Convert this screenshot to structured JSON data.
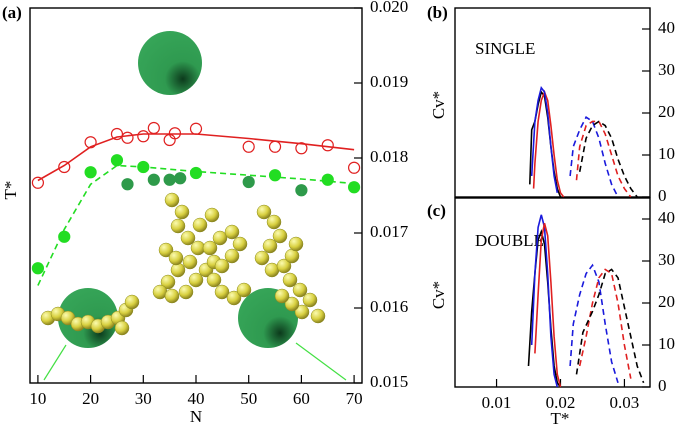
{
  "chart_data": [
    {
      "type": "scatter",
      "label": "(a)",
      "xlabel": "N",
      "ylabel": "T*",
      "xlim": [
        8.5,
        71.5
      ],
      "xticks": [
        10,
        20,
        30,
        40,
        50,
        60,
        70
      ],
      "ylim": [
        0.015,
        0.02
      ],
      "yticks": [
        0.015,
        0.016,
        0.017,
        0.018,
        0.019,
        {
          "value": 0.02,
          "label": "0.020"
        }
      ],
      "series": [
        {
          "color": "#e02020",
          "marker": "open",
          "x": [
            10,
            15,
            20,
            25,
            27,
            30,
            32,
            35,
            36,
            40,
            50,
            55,
            60,
            65,
            70
          ],
          "values": [
            0.01767,
            0.01788,
            0.01821,
            0.01832,
            0.01827,
            0.01829,
            0.0184,
            0.01824,
            0.01833,
            0.01839,
            0.01815,
            0.01815,
            0.01813,
            0.01817,
            0.01787
          ]
        },
        {
          "color": "#e02020",
          "marker": "none",
          "dash": false,
          "x": [
            10,
            15,
            20,
            25,
            30,
            40,
            50,
            60,
            70
          ],
          "values": [
            0.0177,
            0.0179,
            0.01815,
            0.01828,
            0.01832,
            0.01832,
            0.01826,
            0.01819,
            0.01811
          ]
        },
        {
          "color": "#22dd22",
          "marker": "filled",
          "x": [
            10,
            15,
            20,
            25,
            30,
            40,
            55,
            65,
            70
          ],
          "values": [
            0.01653,
            0.01695,
            0.01781,
            0.01797,
            0.01788,
            0.0178,
            0.01777,
            0.01771,
            0.01761
          ]
        },
        {
          "color": "#2e9a4a",
          "marker": "filled",
          "x": [
            27,
            32,
            35,
            37,
            50,
            60
          ],
          "values": [
            0.01765,
            0.01771,
            0.01771,
            0.01773,
            0.01768,
            0.01757
          ]
        },
        {
          "color": "#22dd22",
          "marker": "none",
          "dash": true,
          "x": [
            10,
            15,
            20,
            25,
            30,
            40,
            50,
            60,
            70
          ],
          "values": [
            0.0163,
            0.01705,
            0.01765,
            0.0179,
            0.01788,
            0.01782,
            0.01777,
            0.01772,
            0.01766
          ]
        }
      ]
    },
    {
      "type": "line",
      "label": "(b)",
      "ylabel": "Cv*",
      "annotation": "SINGLE",
      "xlim": [
        0.0035,
        0.034
      ],
      "ylim": [
        0,
        45
      ],
      "yticks": [
        0,
        10,
        20,
        30,
        40
      ],
      "series": [
        {
          "color": "#000000",
          "dash": false,
          "x": [
            0.0152,
            0.0155,
            0.016,
            0.0165,
            0.017,
            0.0175,
            0.018,
            0.0185,
            0.019,
            0.0195,
            0.02
          ],
          "values": [
            3,
            16,
            18,
            22,
            25,
            24,
            19,
            12,
            6,
            2,
            0
          ]
        },
        {
          "color": "#e02020",
          "dash": false,
          "x": [
            0.0158,
            0.016,
            0.0165,
            0.017,
            0.0175,
            0.018,
            0.0185,
            0.019,
            0.0195,
            0.02,
            0.0205
          ],
          "values": [
            2,
            8,
            18,
            23,
            25,
            23,
            17,
            10,
            4,
            1,
            0
          ]
        },
        {
          "color": "#1a1adc",
          "dash": false,
          "x": [
            0.0155,
            0.016,
            0.0165,
            0.017,
            0.0175,
            0.018,
            0.0185,
            0.019,
            0.0195
          ],
          "values": [
            5,
            18,
            23,
            26,
            25,
            20,
            12,
            5,
            1
          ]
        },
        {
          "color": "#1a1adc",
          "dash": true,
          "x": [
            0.0215,
            0.022,
            0.023,
            0.024,
            0.025,
            0.026,
            0.027,
            0.028,
            0.029
          ],
          "values": [
            5,
            12,
            16,
            19,
            18,
            14,
            8,
            3,
            0
          ]
        },
        {
          "color": "#e02020",
          "dash": true,
          "x": [
            0.0225,
            0.023,
            0.024,
            0.025,
            0.026,
            0.027,
            0.028,
            0.029,
            0.03,
            0.031
          ],
          "values": [
            4,
            12,
            17,
            18,
            18,
            15,
            10,
            5,
            2,
            0
          ]
        },
        {
          "color": "#000000",
          "dash": true,
          "x": [
            0.023,
            0.024,
            0.025,
            0.026,
            0.027,
            0.028,
            0.029,
            0.03,
            0.031,
            0.032
          ],
          "values": [
            6,
            14,
            17,
            18,
            17,
            14,
            9,
            5,
            2,
            0
          ]
        }
      ]
    },
    {
      "type": "line",
      "label": "(c)",
      "xlabel": "T*",
      "ylabel": "Cv*",
      "annotation": "DOUBLE",
      "xlim": [
        0.0035,
        0.034
      ],
      "xticks": [
        0.01,
        0.02,
        0.03
      ],
      "ylim": [
        0,
        45
      ],
      "yticks": [
        0,
        10,
        20,
        30,
        40
      ],
      "series": [
        {
          "color": "#000000",
          "dash": false,
          "x": [
            0.015,
            0.0155,
            0.016,
            0.0165,
            0.017,
            0.0175,
            0.018,
            0.0185,
            0.019,
            0.0195,
            0.02
          ],
          "values": [
            5,
            18,
            27,
            35,
            37,
            34,
            25,
            14,
            5,
            1,
            0
          ]
        },
        {
          "color": "#1a1adc",
          "dash": false,
          "x": [
            0.0155,
            0.016,
            0.0165,
            0.017,
            0.0175,
            0.018,
            0.0185,
            0.019,
            0.0195
          ],
          "values": [
            10,
            27,
            38,
            41,
            38,
            27,
            12,
            3,
            0
          ]
        },
        {
          "color": "#e02020",
          "dash": false,
          "x": [
            0.016,
            0.0165,
            0.017,
            0.0175,
            0.018,
            0.0185,
            0.019,
            0.0195,
            0.02
          ],
          "values": [
            8,
            22,
            35,
            39,
            36,
            25,
            12,
            3,
            0
          ]
        },
        {
          "color": "#1a1adc",
          "dash": true,
          "x": [
            0.0215,
            0.022,
            0.023,
            0.024,
            0.025,
            0.026,
            0.027,
            0.028,
            0.029
          ],
          "values": [
            5,
            15,
            22,
            27,
            29,
            25,
            15,
            6,
            1
          ]
        },
        {
          "color": "#e02020",
          "dash": true,
          "x": [
            0.023,
            0.024,
            0.025,
            0.026,
            0.027,
            0.028,
            0.029,
            0.03,
            0.031
          ],
          "values": [
            5,
            12,
            20,
            26,
            28,
            27,
            20,
            10,
            2
          ]
        },
        {
          "color": "#000000",
          "dash": true,
          "x": [
            0.0225,
            0.0235,
            0.025,
            0.026,
            0.027,
            0.028,
            0.029,
            0.03,
            0.031,
            0.032,
            0.033
          ],
          "values": [
            3,
            13,
            18,
            22,
            27,
            28,
            26,
            19,
            12,
            5,
            1
          ]
        }
      ]
    }
  ]
}
